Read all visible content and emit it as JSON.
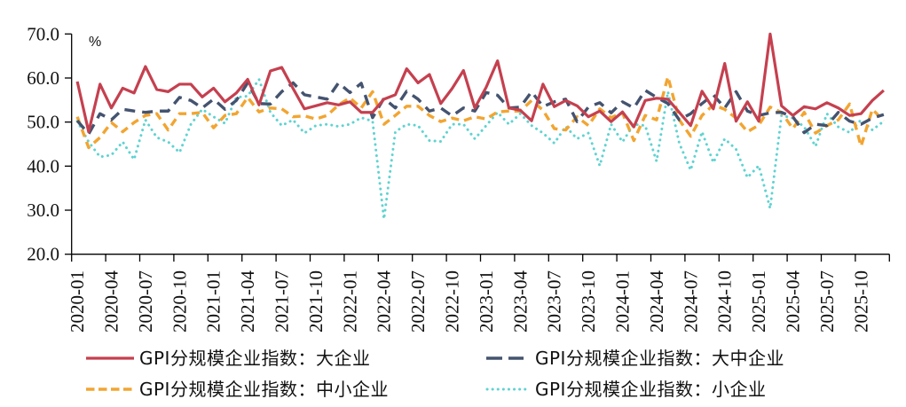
{
  "chart_data": {
    "type": "line",
    "title": "",
    "xlabel": "",
    "ylabel": "%",
    "ylim": [
      20,
      70
    ],
    "yticks": [
      "20.0",
      "30.0",
      "40.0",
      "50.0",
      "60.0",
      "70.0"
    ],
    "grid": false,
    "legend_position": "bottom",
    "xtick_labels": [
      "2020-01",
      "2020-04",
      "2020-07",
      "2020-10",
      "2021-01",
      "2021-04",
      "2021-07",
      "2021-10",
      "2022-01",
      "2022-04",
      "2022-07",
      "2022-10",
      "2023-01",
      "2023-04",
      "2023-07",
      "2023-10",
      "2024-01",
      "2024-04",
      "2024-07",
      "2024-10",
      "2025-01",
      "2025-04",
      "2025-07",
      "2025-10"
    ],
    "x": [
      "2020-01",
      "2020-02",
      "2020-03",
      "2020-04",
      "2020-05",
      "2020-06",
      "2020-07",
      "2020-08",
      "2020-09",
      "2020-10",
      "2020-11",
      "2020-12",
      "2021-01",
      "2021-02",
      "2021-03",
      "2021-04",
      "2021-05",
      "2021-06",
      "2021-07",
      "2021-08",
      "2021-09",
      "2021-10",
      "2021-11",
      "2021-12",
      "2022-01",
      "2022-02",
      "2022-03",
      "2022-04",
      "2022-05",
      "2022-06",
      "2022-07",
      "2022-08",
      "2022-09",
      "2022-10",
      "2022-11",
      "2022-12",
      "2023-01",
      "2023-02",
      "2023-03",
      "2023-04",
      "2023-05",
      "2023-06",
      "2023-07",
      "2023-08",
      "2023-09",
      "2023-10",
      "2023-11",
      "2023-12",
      "2024-01",
      "2024-02",
      "2024-03",
      "2024-04",
      "2024-05",
      "2024-06",
      "2024-07",
      "2024-08",
      "2024-09",
      "2024-10",
      "2024-11",
      "2024-12",
      "2025-01",
      "2025-02",
      "2025-03",
      "2025-04",
      "2025-05",
      "2025-06",
      "2025-07",
      "2025-08",
      "2025-09",
      "2025-10",
      "2025-11",
      "2025-12"
    ],
    "series": [
      {
        "key": "large",
        "name": "GPI分规模企业指数：大企业",
        "color": "#C5404F",
        "style": "solid",
        "values": [
          59.2,
          47.8,
          58.6,
          53.2,
          57.7,
          56.6,
          62.6,
          57.4,
          56.9,
          58.6,
          58.6,
          55.7,
          57.7,
          54.6,
          56.6,
          59.7,
          53.9,
          61.6,
          62.4,
          57.6,
          53.0,
          53.7,
          54.4,
          53.9,
          54.6,
          52.2,
          52.2,
          55.2,
          56.2,
          62.1,
          58.9,
          60.8,
          54.2,
          57.6,
          61.7,
          53.2,
          57.9,
          63.9,
          53.2,
          52.7,
          50.3,
          58.6,
          53.5,
          54.9,
          53.7,
          51.2,
          52.5,
          50.1,
          52.3,
          48.9,
          54.9,
          55.4,
          55.2,
          52.2,
          49.2,
          57.0,
          53.0,
          63.3,
          50.2,
          54.6,
          50.2,
          70.0,
          53.7,
          51.5,
          53.5,
          53.0,
          54.4,
          53.2,
          51.5,
          51.9,
          54.9,
          57.2
        ]
      },
      {
        "key": "large-medium",
        "name": "GPI分规模企业指数：大中企业",
        "color": "#44536F",
        "style": "dashed",
        "values": [
          50.3,
          47.3,
          51.9,
          50.5,
          52.9,
          52.5,
          52.2,
          52.5,
          52.5,
          55.6,
          54.9,
          53.2,
          55.2,
          52.9,
          54.9,
          58.9,
          54.2,
          54.1,
          56.9,
          58.9,
          56.2,
          55.7,
          55.2,
          58.9,
          56.7,
          58.8,
          51.0,
          55.4,
          53.2,
          57.0,
          55.2,
          52.5,
          53.2,
          51.4,
          53.2,
          52.5,
          56.7,
          56.1,
          53.2,
          53.4,
          56.9,
          53.5,
          54.6,
          55.2,
          50.1,
          53.4,
          54.4,
          52.1,
          54.6,
          53.2,
          57.2,
          55.6,
          54.2,
          50.5,
          51.9,
          54.2,
          56.2,
          53.2,
          56.9,
          52.5,
          51.5,
          52.1,
          52.2,
          51.2,
          47.6,
          49.5,
          49.2,
          52.2,
          50.2,
          49.5,
          50.9,
          51.7
        ]
      },
      {
        "key": "small-medium",
        "name": "GPI分规模企业指数：中小企业",
        "color": "#F2A531",
        "style": "dashed-short",
        "values": [
          51.2,
          44.2,
          46.5,
          49.9,
          47.8,
          49.9,
          51.5,
          51.9,
          48.2,
          51.9,
          51.9,
          52.2,
          48.7,
          51.5,
          51.9,
          55.6,
          52.3,
          53.2,
          53.0,
          51.2,
          51.4,
          50.7,
          51.5,
          53.9,
          55.5,
          53.2,
          56.9,
          49.5,
          51.5,
          53.6,
          53.6,
          51.5,
          50.1,
          50.9,
          50.3,
          51.2,
          50.7,
          52.3,
          52.5,
          52.5,
          54.9,
          52.7,
          48.5,
          48.2,
          51.2,
          49.2,
          53.0,
          51.0,
          52.1,
          45.8,
          51.5,
          50.5,
          60.3,
          50.5,
          46.8,
          51.5,
          53.9,
          52.9,
          50.9,
          47.8,
          49.3,
          53.4,
          52.2,
          48.5,
          52.2,
          47.5,
          49.2,
          50.5,
          54.1,
          44.5,
          52.9,
          50.3
        ]
      },
      {
        "key": "small",
        "name": "GPI分规模企业指数：小企业",
        "color": "#5FD3D1",
        "style": "dotted",
        "values": [
          50.2,
          45.5,
          42.1,
          42.5,
          45.5,
          41.5,
          50.5,
          46.5,
          45.5,
          43.1,
          49.5,
          52.9,
          51.2,
          49.7,
          55.6,
          55.9,
          59.7,
          52.2,
          49.2,
          50.5,
          47.5,
          49.2,
          49.5,
          49.0,
          49.5,
          51.0,
          50.2,
          28.0,
          47.8,
          49.5,
          49.2,
          45.8,
          45.6,
          49.5,
          49.5,
          46.2,
          49.2,
          52.2,
          49.5,
          51.9,
          49.2,
          47.5,
          45.2,
          49.0,
          46.2,
          47.5,
          40.1,
          49.5,
          45.5,
          49.5,
          49.2,
          41.1,
          56.9,
          45.2,
          39.1,
          47.8,
          40.8,
          46.2,
          43.8,
          37.4,
          40.1,
          30.4,
          51.5,
          50.9,
          48.9,
          44.5,
          51.9,
          48.9,
          47.6,
          50.5,
          48.2,
          50.2
        ]
      }
    ]
  }
}
